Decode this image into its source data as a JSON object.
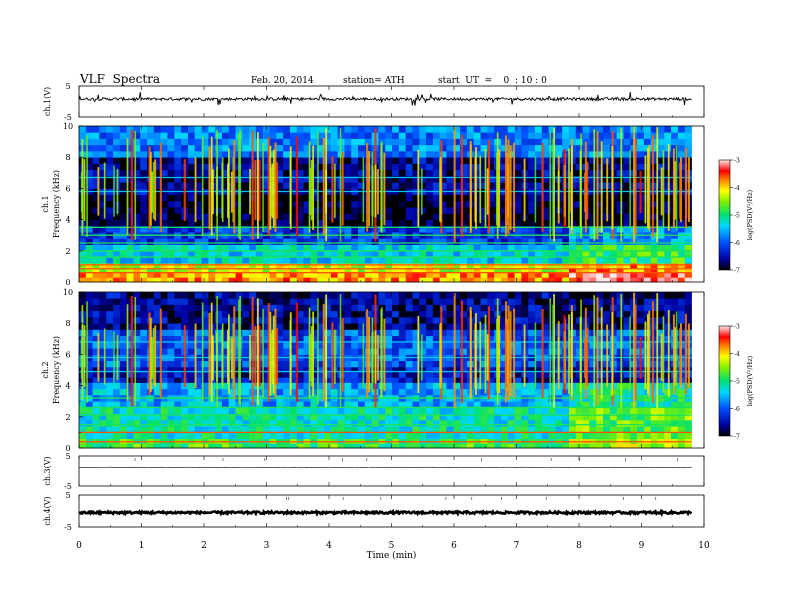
{
  "header": {
    "title": "VLF  Spectra",
    "date": "Feb. 20, 2014",
    "station": "station= ATH",
    "start_ut": "start  UT  =    0  : 10 : 0"
  },
  "chart_data": [
    {
      "type": "line",
      "panel": "ch1-waveform",
      "ylabel": "ch.1(V)",
      "ylim": [
        -5,
        5
      ],
      "yticks": [
        "5",
        "-5"
      ],
      "xlim": [
        0,
        10
      ],
      "x_end": 9.8,
      "baseline": 0.8,
      "noise_amplitude": 0.45
    },
    {
      "type": "heatmap",
      "panel": "ch1-spectrogram",
      "ylabel": "Frequency  (kHz)",
      "channel_label": "ch.1",
      "ylim": [
        0,
        10
      ],
      "yticks": [
        "0",
        "2",
        "4",
        "6",
        "8",
        "10"
      ],
      "xlim": [
        0,
        10
      ],
      "x_end": 9.8,
      "colorbar": {
        "label": "log(PSD(V²/Hz)",
        "range": [
          -7,
          -3
        ],
        "ticks": [
          "-3",
          "-4",
          "-5",
          "-6",
          "-7"
        ]
      },
      "bands_khz": [
        {
          "from": 0,
          "to": 0.6,
          "level": -3.8
        },
        {
          "from": 0.6,
          "to": 1.2,
          "level": -4.3
        },
        {
          "from": 1.2,
          "to": 2.4,
          "level": -5.4
        },
        {
          "from": 2.4,
          "to": 3.6,
          "level": -6.2
        },
        {
          "from": 3.6,
          "to": 5.6,
          "level": -6.9
        },
        {
          "from": 5.6,
          "to": 8.0,
          "level": -6.6
        },
        {
          "from": 8.0,
          "to": 10.0,
          "level": -5.8
        }
      ],
      "lines_khz": [
        0.6,
        0.85,
        1.1,
        1.6,
        2.0,
        2.5,
        3.0,
        3.5,
        5.8,
        6.7
      ],
      "shift_after_min": 7.8
    },
    {
      "type": "heatmap",
      "panel": "ch2-spectrogram",
      "ylabel": "Frequency  (kHz)",
      "channel_label": "ch.2",
      "ylim": [
        0,
        10
      ],
      "yticks": [
        "0",
        "2",
        "4",
        "6",
        "8",
        "10"
      ],
      "xlim": [
        0,
        10
      ],
      "x_end": 9.8,
      "colorbar": {
        "label": "log(PSD(V²/Hz)",
        "range": [
          -7,
          -3
        ],
        "ticks": [
          "-3",
          "-4",
          "-5",
          "-6",
          "-7"
        ]
      },
      "bands_khz": [
        {
          "from": 0,
          "to": 0.6,
          "level": -4.8
        },
        {
          "from": 0.6,
          "to": 2.6,
          "level": -5.2
        },
        {
          "from": 2.6,
          "to": 4.2,
          "level": -5.6
        },
        {
          "from": 4.2,
          "to": 5.2,
          "level": -6.4
        },
        {
          "from": 5.2,
          "to": 7.6,
          "level": -6.0
        },
        {
          "from": 7.6,
          "to": 10.0,
          "level": -6.6
        }
      ],
      "lines_khz": [
        0.4,
        1.0,
        1.5,
        2.1,
        2.6,
        3.2,
        4.9,
        5.8,
        6.8
      ],
      "shift_after_min": 7.8
    },
    {
      "type": "line",
      "panel": "ch3-waveform",
      "ylabel": "ch.3(V)",
      "ylim": [
        -5,
        5
      ],
      "yticks": [
        "5",
        "-5"
      ],
      "xlim": [
        0,
        10
      ],
      "x_end": 9.8,
      "baseline": 1.2,
      "noise_amplitude": 0.08
    },
    {
      "type": "line",
      "panel": "ch4-waveform",
      "ylabel": "ch.4(V)",
      "ylim": [
        -5,
        5
      ],
      "yticks": [
        "5",
        "-5"
      ],
      "xlim": [
        0,
        10
      ],
      "x_end": 9.8,
      "baseline": -0.5,
      "noise_amplitude": 0.35,
      "xlabel": "Time  (min)",
      "xticks": [
        "0",
        "1",
        "2",
        "3",
        "4",
        "5",
        "6",
        "7",
        "8",
        "9",
        "10"
      ]
    }
  ]
}
